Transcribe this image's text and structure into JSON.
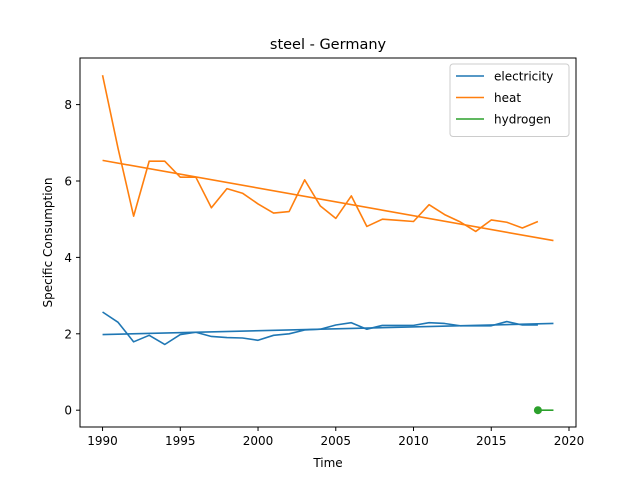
{
  "chart_data": {
    "type": "line",
    "title": "steel - Germany",
    "xlabel": "Time",
    "ylabel": "Specific Consumption",
    "xlim": [
      1988.55,
      2020.45
    ],
    "ylim": [
      -0.44,
      9.22
    ],
    "xticks": [
      1990,
      1995,
      2000,
      2005,
      2010,
      2015,
      2020
    ],
    "yticks": [
      0,
      2,
      4,
      6,
      8
    ],
    "grid": false,
    "legend_position": "top-right",
    "series": [
      {
        "name": "electricity",
        "color": "#1f77b4",
        "x": [
          1990,
          1991,
          1992,
          1993,
          1994,
          1995,
          1996,
          1997,
          1998,
          1999,
          2000,
          2001,
          2002,
          2003,
          2004,
          2005,
          2006,
          2007,
          2008,
          2009,
          2010,
          2011,
          2012,
          2013,
          2014,
          2015,
          2016,
          2017,
          2018
        ],
        "y": [
          2.57,
          2.3,
          1.79,
          1.96,
          1.72,
          1.98,
          2.04,
          1.93,
          1.9,
          1.89,
          1.83,
          1.96,
          2.0,
          2.1,
          2.12,
          2.23,
          2.29,
          2.12,
          2.22,
          2.22,
          2.22,
          2.29,
          2.27,
          2.21,
          2.21,
          2.21,
          2.32,
          2.23,
          2.23
        ],
        "trend": {
          "x": [
            1990,
            2019
          ],
          "y": [
            1.98,
            2.27
          ]
        }
      },
      {
        "name": "heat",
        "color": "#ff7f0e",
        "x": [
          1990,
          1991,
          1992,
          1993,
          1994,
          1995,
          1996,
          1997,
          1998,
          1999,
          2000,
          2001,
          2002,
          2003,
          2004,
          2005,
          2006,
          2007,
          2008,
          2009,
          2010,
          2011,
          2012,
          2013,
          2014,
          2015,
          2016,
          2017,
          2018
        ],
        "y": [
          8.77,
          6.85,
          5.08,
          6.52,
          6.52,
          6.1,
          6.1,
          5.3,
          5.8,
          5.68,
          5.4,
          5.16,
          5.2,
          6.03,
          5.35,
          5.02,
          5.61,
          4.81,
          5.0,
          4.97,
          4.94,
          5.38,
          5.12,
          4.93,
          4.68,
          4.98,
          4.92,
          4.77,
          4.94
        ],
        "trend": {
          "x": [
            1990,
            2019
          ],
          "y": [
            6.54,
            4.44
          ]
        }
      },
      {
        "name": "hydrogen",
        "color": "#2ca02c",
        "x": [
          2018,
          2019
        ],
        "y": [
          0.0,
          0.0
        ],
        "marker_at": {
          "x": 2018,
          "y": 0.0
        }
      }
    ]
  }
}
